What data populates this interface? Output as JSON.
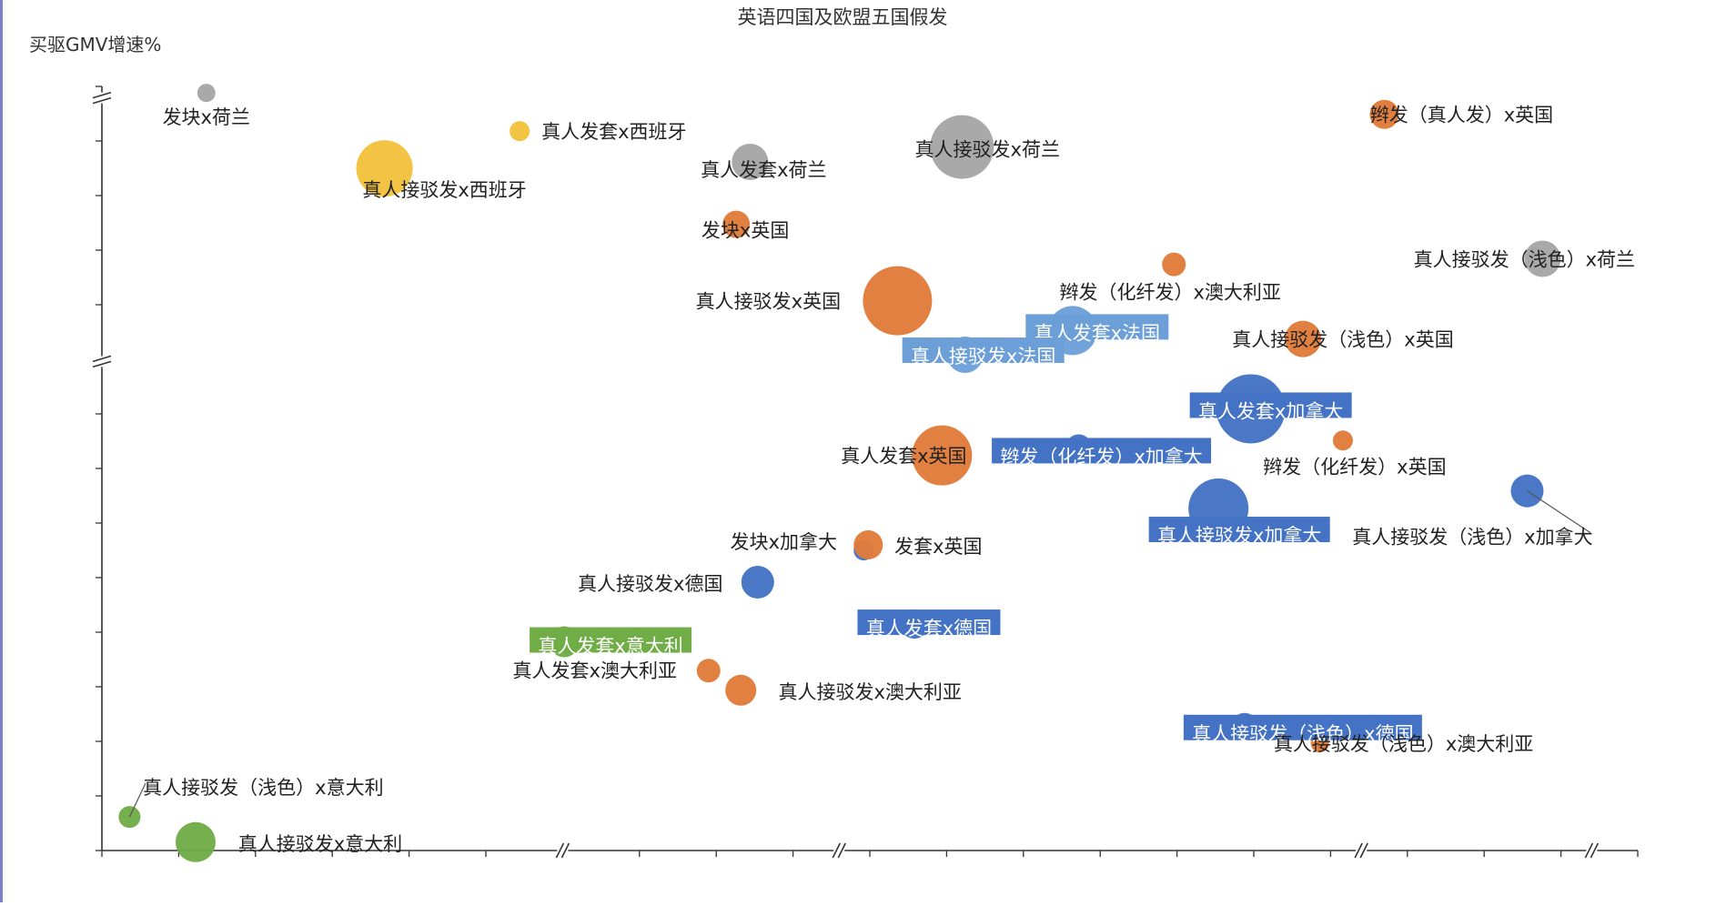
{
  "chart_data": {
    "type": "bubble",
    "title": "英语四国及欧盟五国假发",
    "ylabel": "买驱GMV增速%",
    "xlabel": "",
    "grid": false,
    "axis_breaks": {
      "x": 4,
      "y": 2
    },
    "colors": {
      "英国": "#e07b39",
      "澳大利亚": "#e07b39",
      "荷兰": "#a5a5a5",
      "西班牙": "#f2c13c",
      "法国": "#6c9fd8",
      "加拿大": "#4472c4",
      "德国": "#4472c4",
      "意大利": "#70ad47"
    },
    "points": [
      {
        "label": "发块x荷兰",
        "country": "荷兰",
        "x": 6.8,
        "y": 44.3,
        "size": 10,
        "label_style": "plain"
      },
      {
        "label": "真人发套x西班牙",
        "country": "西班牙",
        "x": 27.2,
        "y": 40.2,
        "size": 11,
        "label_style": "plain"
      },
      {
        "label": "真人接驳发x西班牙",
        "country": "西班牙",
        "x": 18.4,
        "y": 36.2,
        "size": 31,
        "label_style": "plain"
      },
      {
        "label": "真人发套x荷兰",
        "country": "荷兰",
        "x": 42.2,
        "y": 36.9,
        "size": 20,
        "label_style": "plain"
      },
      {
        "label": "真人接驳发x荷兰",
        "country": "荷兰",
        "x": 56.0,
        "y": 38.5,
        "size": 35,
        "label_style": "plain"
      },
      {
        "label": "辫发（真人发）x英国",
        "country": "英国",
        "x": 83.5,
        "y": 42.0,
        "size": 16,
        "label_style": "plain"
      },
      {
        "label": "发块x英国",
        "country": "英国",
        "x": 41.3,
        "y": 30.2,
        "size": 15,
        "label_style": "plain"
      },
      {
        "label": "真人接驳发（浅色）x荷兰",
        "country": "荷兰",
        "x": 93.8,
        "y": 26.5,
        "size": 20,
        "label_style": "plain"
      },
      {
        "label": "辫发（化纤发）x澳大利亚",
        "country": "澳大利亚",
        "x": 69.8,
        "y": 25.9,
        "size": 13,
        "label_style": "plain"
      },
      {
        "label": "真人接驳发x英国",
        "country": "英国",
        "x": 51.8,
        "y": 22.0,
        "size": 38,
        "label_style": "plain"
      },
      {
        "label": "真人发套x法国",
        "country": "法国",
        "x": 63.2,
        "y": 18.8,
        "size": 27,
        "label_style": "box"
      },
      {
        "label": "真人接驳发x法国",
        "country": "法国",
        "x": 56.2,
        "y": 16.2,
        "size": 20,
        "label_style": "box"
      },
      {
        "label": "真人接驳发（浅色）x英国",
        "country": "英国",
        "x": 78.2,
        "y": 17.9,
        "size": 20,
        "label_style": "plain"
      },
      {
        "label": "真人发套x加拿大",
        "country": "加拿大",
        "x": 74.8,
        "y": 10.4,
        "size": 38,
        "label_style": "box"
      },
      {
        "label": "辫发（化纤发）x加拿大",
        "country": "加拿大",
        "x": 63.6,
        "y": 6.3,
        "size": 14,
        "label_style": "box"
      },
      {
        "label": "真人发套x英国",
        "country": "英国",
        "x": 54.7,
        "y": 5.4,
        "size": 33,
        "label_style": "plain"
      },
      {
        "label": "辫发（化纤发）x英国",
        "country": "英国",
        "x": 80.8,
        "y": 7.0,
        "size": 11,
        "label_style": "plain"
      },
      {
        "label": "真人接驳发（浅色）x加拿大",
        "country": "加拿大",
        "x": 92.8,
        "y": 1.6,
        "size": 18,
        "label_style": "plain"
      },
      {
        "label": "真人接驳发x加拿大",
        "country": "加拿大",
        "x": 72.7,
        "y": -0.3,
        "size": 33,
        "label_style": "box"
      },
      {
        "label": "发块x加拿大",
        "country": "加拿大",
        "x": 49.6,
        "y": -4.8,
        "size": 11,
        "label_style": "plain"
      },
      {
        "label": "发套x英国",
        "country": "英国",
        "x": 49.9,
        "y": -4.2,
        "size": 16,
        "label_style": "plain"
      },
      {
        "label": "真人接驳发x德国",
        "country": "德国",
        "x": 42.7,
        "y": -8.2,
        "size": 18,
        "label_style": "plain"
      },
      {
        "label": "真人发套x德国",
        "country": "德国",
        "x": 52.9,
        "y": -12.7,
        "size": 16,
        "label_style": "box"
      },
      {
        "label": "真人发套x意大利",
        "country": "意大利",
        "x": 30.1,
        "y": -14.6,
        "size": 17,
        "label_style": "box"
      },
      {
        "label": "真人发套x澳大利亚",
        "country": "澳大利亚",
        "x": 39.5,
        "y": -17.7,
        "size": 13,
        "label_style": "plain"
      },
      {
        "label": "真人接驳发x澳大利亚",
        "country": "澳大利亚",
        "x": 41.6,
        "y": -19.8,
        "size": 17,
        "label_style": "plain"
      },
      {
        "label": "真人接驳发（浅色）x德国",
        "country": "德国",
        "x": 74.4,
        "y": -23.7,
        "size": 15,
        "label_style": "box"
      },
      {
        "label": "真人接驳发（浅色）x澳大利亚",
        "country": "澳大利亚",
        "x": 79.3,
        "y": -25.5,
        "size": 10,
        "label_style": "plain"
      },
      {
        "label": "真人接驳发（浅色）x意大利",
        "country": "意大利",
        "x": 1.8,
        "y": -33.4,
        "size": 12,
        "label_style": "plain"
      },
      {
        "label": "真人接驳发x意大利",
        "country": "意大利",
        "x": 6.1,
        "y": -36.1,
        "size": 22,
        "label_style": "plain"
      }
    ],
    "xlim": [
      0,
      100
    ],
    "ylim": [
      -37,
      45
    ]
  }
}
